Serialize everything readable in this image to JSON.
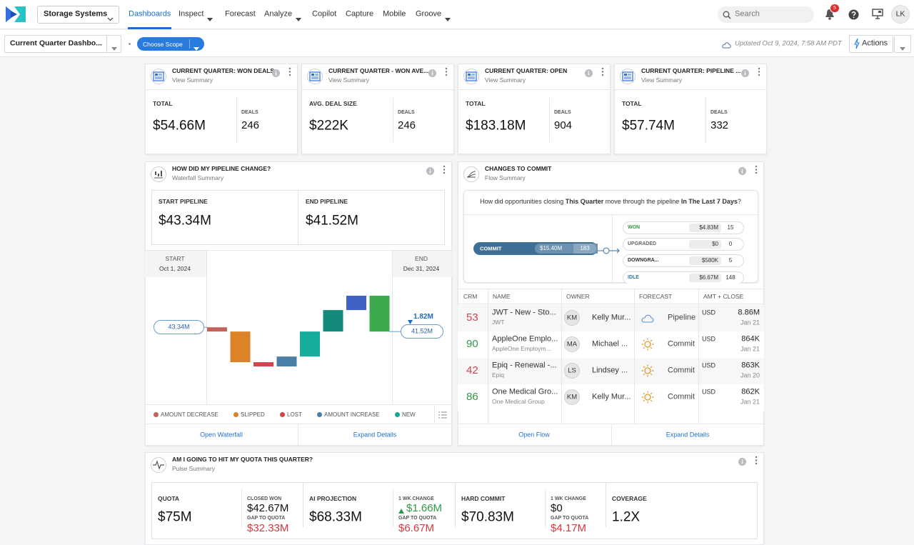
{
  "nav": {
    "workspace": "Storage Systems",
    "items": [
      {
        "label": "Dashboards",
        "menu": false
      },
      {
        "label": "Inspect",
        "menu": true
      },
      {
        "label": "Forecast",
        "menu": false
      },
      {
        "label": "Analyze",
        "menu": true
      },
      {
        "label": "Copilot",
        "menu": false
      },
      {
        "label": "Capture",
        "menu": false
      },
      {
        "label": "Mobile",
        "menu": false
      },
      {
        "label": "Groove",
        "menu": true
      }
    ],
    "search": "Search",
    "notifications": 5,
    "avatar": "LK"
  },
  "toolbar": {
    "dashboard": "Current Quarter Dashbo...",
    "scope": "Choose Scope",
    "updated": "Updated Oct 9, 2024, 7:58 AM PDT",
    "actions": "Actions"
  },
  "kpi_cards": [
    {
      "title": "CURRENT QUARTER: WON DEALS",
      "subtitle": "View Summary",
      "metric_label": "TOTAL",
      "metric": "$54.66M",
      "deals_label": "DEALS",
      "deals": 246
    },
    {
      "title": "CURRENT QUARTER - WON AVE...",
      "subtitle": "View Summary",
      "metric_label": "AVG. DEAL SIZE",
      "metric": "$222K",
      "deals_label": "DEALS",
      "deals": 246
    },
    {
      "title": "CURRENT QUARTER: OPEN",
      "subtitle": "View Summary",
      "metric_label": "TOTAL",
      "metric": "$183.18M",
      "deals_label": "DEALS",
      "deals": 904
    },
    {
      "title": "CURRENT QUARTER: PIPELINE ...",
      "subtitle": "View Summary",
      "metric_label": "TOTAL",
      "metric": "$57.74M",
      "deals_label": "DEALS",
      "deals": 332
    }
  ],
  "waterfall": {
    "title": "HOW DID MY PIPELINE CHANGE?",
    "subtitle": "Waterfall Summary",
    "start_label": "START PIPELINE",
    "start_value": "$43.34M",
    "end_label": "END PIPELINE",
    "end_value": "$41.52M",
    "start_header": "START",
    "start_date": "Oct 1, 2024",
    "end_header": "END",
    "end_date": "Dec 31, 2024",
    "chart_data": {
      "type": "waterfall",
      "start": 43.34,
      "start_label": "43.34M",
      "end": 41.52,
      "end_label": "41.52M",
      "change": -1.82,
      "change_label": "1.82M",
      "series": [
        {
          "name": "AMOUNT DECREASE",
          "color": "#c0635b",
          "values": [
            -1.8,
            null,
            null,
            null,
            null,
            null,
            null,
            null
          ]
        },
        {
          "name": "SLIPPED",
          "color": "#dd8327",
          "values": [
            null,
            -13,
            null,
            null,
            null,
            null,
            null,
            null
          ]
        },
        {
          "name": "LOST",
          "color": "#d2434b",
          "values": [
            null,
            null,
            -1.8,
            null,
            null,
            null,
            null,
            null
          ]
        },
        {
          "name": "AMOUNT INCREASE",
          "color": "#4a80a8",
          "values": [
            null,
            null,
            null,
            4.2,
            null,
            null,
            6.1,
            null
          ]
        },
        {
          "name": "NEW",
          "color": "#15a596",
          "values": [
            null,
            null,
            null,
            null,
            10.6,
            9.1,
            null,
            -15.22
          ]
        }
      ],
      "bar_colors": [
        "#c0635b",
        "#dd8327",
        "#d2434b",
        "#4a80a8",
        "#17ad9c",
        "#13897b",
        "#3f63c4",
        "#3daa4d"
      ]
    },
    "links": [
      "Open Waterfall",
      "Expand Details"
    ]
  },
  "flow": {
    "title": "CHANGES TO COMMIT",
    "subtitle": "Flow Summary",
    "question": [
      {
        "text": "How did opportunities closing ",
        "bold": false
      },
      {
        "text": "This Quarter",
        "bold": true
      },
      {
        "text": " move through the pipeline ",
        "bold": false
      },
      {
        "text": "In The Last 7 Days",
        "bold": true
      },
      {
        "text": "?",
        "bold": false
      }
    ],
    "source": {
      "name": "COMMIT",
      "amount": "$15.40M",
      "count": 183
    },
    "targets": [
      {
        "name": "WON",
        "color": "#2e9a46",
        "amount": "$4.83M",
        "count": 15
      },
      {
        "name": "UPGRADED",
        "color": "#666666",
        "amount": "$0",
        "count": 0
      },
      {
        "name": "DOWNGRA...",
        "color": "#333333",
        "amount": "$580K",
        "count": 5
      },
      {
        "name": "IDLE",
        "color": "#2b6fd6",
        "amount": "$6.67M",
        "count": 148
      }
    ],
    "columns": [
      "CRM",
      "NAME",
      "OWNER",
      "FORECAST",
      "AMT + CLOSE"
    ],
    "rows": [
      {
        "crm": 53,
        "crm_color": "#d2434b",
        "name": "JWT - New - Sto...",
        "account": "JWT",
        "initials": "KM",
        "owner": "Kelly Mur...",
        "forecast": "Pipeline",
        "currency": "USD",
        "amount": "8.86M",
        "close": "Jan 21"
      },
      {
        "crm": 90,
        "crm_color": "#2e9a46",
        "name": "AppleOne Emplo...",
        "account": "AppleOne Employm...",
        "initials": "MA",
        "owner": "Michael ...",
        "forecast": "Commit",
        "currency": "USD",
        "amount": "864K",
        "close": "Jan 21"
      },
      {
        "crm": 42,
        "crm_color": "#d2434b",
        "name": "Epiq - Renewal -...",
        "account": "Epiq",
        "initials": "LS",
        "owner": "Lindsey ...",
        "forecast": "Commit",
        "currency": "USD",
        "amount": "863K",
        "close": "Jan 20"
      },
      {
        "crm": 86,
        "crm_color": "#2e9a46",
        "name": "One Medical Gro...",
        "account": "One Medical Group",
        "initials": "KM",
        "owner": "Kelly Mur...",
        "forecast": "Commit",
        "currency": "USD",
        "amount": "862K",
        "close": "Jan 21"
      }
    ],
    "links": [
      "Open Flow",
      "Expand Details"
    ]
  },
  "pulse": {
    "title": "AM I GOING TO HIT MY QUOTA THIS QUARTER?",
    "subtitle": "Pulse Summary",
    "blocks": [
      {
        "label": "QUOTA",
        "value": "$75M",
        "side_label": "CLOSED WON",
        "side_value": "$42.67M",
        "gap_label": "GAP TO QUOTA",
        "gap": "$32.33M"
      },
      {
        "label": "AI PROJECTION",
        "value": "$68.33M",
        "side_label": "1 WK CHANGE",
        "side_value": "$1.66M",
        "trend": "up",
        "gap_label": "GAP TO QUOTA",
        "gap": "$6.67M"
      },
      {
        "label": "HARD COMMIT",
        "value": "$70.83M",
        "side_label": "1 WK CHANGE",
        "side_value": "$0",
        "gap_label": "GAP TO QUOTA",
        "gap": "$4.17M"
      },
      {
        "label": "COVERAGE",
        "value": "1.2X"
      }
    ]
  }
}
